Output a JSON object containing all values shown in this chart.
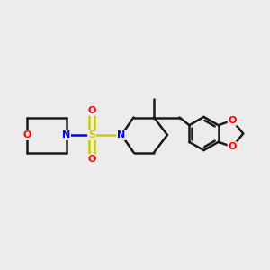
{
  "bg_color": "#ececec",
  "bond_color": "#1a1a1a",
  "N_color": "#0000ff",
  "O_color": "#ff0000",
  "S_color": "#cccc00",
  "bond_width": 1.8,
  "font_size_atom": 8,
  "fig_width": 3.0,
  "fig_height": 3.0,
  "dpi": 100,
  "xlim": [
    0,
    10
  ],
  "ylim": [
    2,
    8
  ]
}
